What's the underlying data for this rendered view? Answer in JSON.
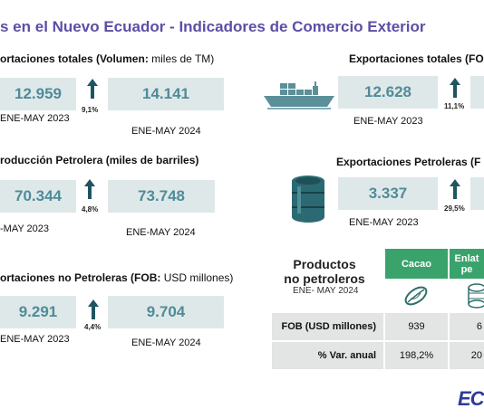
{
  "title": "s en el Nuevo Ecuador - Indicadores de Comercio Exterior",
  "sections": {
    "exports_volume": {
      "title_bold": "ortaciones totales (",
      "title_bold2": "Volumen:",
      "title_normal": " miles de TM)",
      "value_prev": "12.959",
      "value_curr": "14.141",
      "change": "9,1%",
      "period_prev": "ENE-MAY 2023",
      "period_curr": "ENE-MAY 2024"
    },
    "oil_production": {
      "title": "roducción Petrolera (miles de barriles)",
      "value_prev": "70.344",
      "value_curr": "73.748",
      "change": "4,8%",
      "period_prev": "-MAY 2023",
      "period_curr": "ENE-MAY 2024"
    },
    "non_oil_exports": {
      "title_bold": "ortaciones no Petroleras (FOB:",
      "title_normal": " USD millones)",
      "value_prev": "9.291",
      "value_curr": "9.704",
      "change": "4,4%",
      "period_prev": "ENE-MAY 2023",
      "period_curr": "ENE-MAY 2024"
    },
    "exports_fob": {
      "title": "Exportaciones totales (FO",
      "value_prev": "12.628",
      "change": "11,1%",
      "period_prev": "ENE-MAY 2023",
      "icon": "cargo-ship-icon"
    },
    "oil_exports": {
      "title": "Exportaciones Petroleras (F",
      "value_prev": "3.337",
      "change": "29,5%",
      "period_prev": "ENE-MAY 2023",
      "icon": "oil-barrel-icon"
    }
  },
  "products_table": {
    "heading_line1": "Productos",
    "heading_line2": "no petroleros",
    "subheading": "ENE- MAY 2024",
    "col1": "Cacao",
    "col2_line1": "Enlat",
    "col2_line2": "pe",
    "row1_label": "FOB (USD millones)",
    "row1_col1": "939",
    "row1_col2": "6",
    "row2_label": "% Var. anual",
    "row2_col1": "198,2%",
    "row2_col2": "20",
    "icons": [
      "cacao-pod-icon",
      "canned-food-icon"
    ]
  },
  "logo_text": "EC",
  "colors": {
    "title": "#5b4fa6",
    "value_box": "#dfe8e9",
    "value_text": "#4e8c99",
    "arrow": "#1f5560",
    "table_header": "#3aa36c",
    "table_cell": "#e3e4e4",
    "logo": "#2d3c9a"
  }
}
